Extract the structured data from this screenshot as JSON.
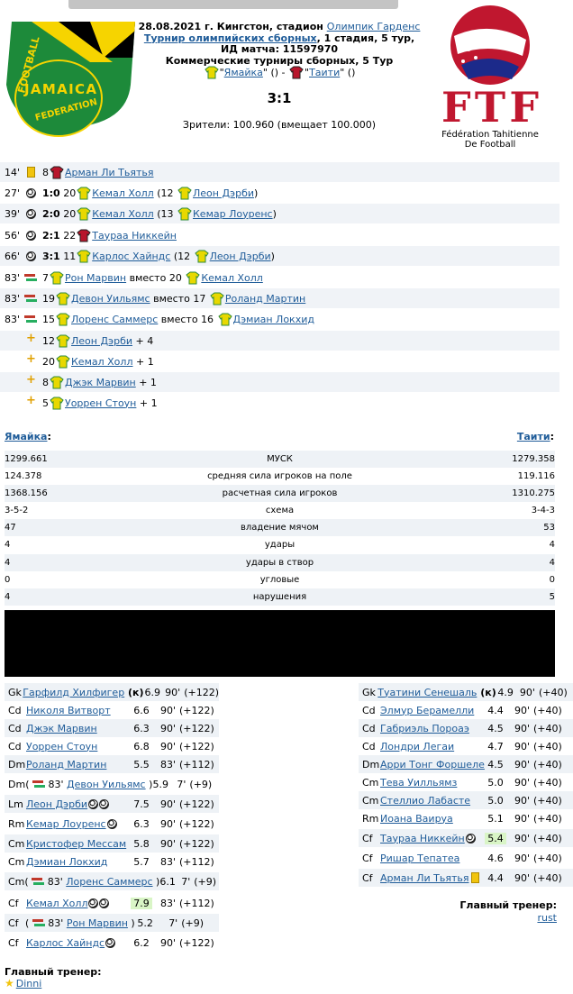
{
  "match": {
    "date_line_prefix": "28.08.2021 г. Кингстон, стадион ",
    "stadium": "Олимпик Гарденс",
    "tournament_link": "Турнир олимпийских сборных",
    "tournament_rest": ", 1 стадия, 5 тур,",
    "match_id": "ИД матча: 11597970",
    "round": "Коммерческие турниры сборных, 5 Тур",
    "home": "Ямайка",
    "away": "Таити",
    "score": "3:1",
    "attendance_label": "Зрители:",
    "attendance_value": "100.960 (вмещает 100.000)",
    "home_logo_text_top": "FOOTBALL",
    "home_logo_text_mid": "JAMAICA",
    "home_logo_text_bot": "FEDERATION",
    "away_logo_letters": "FTF",
    "away_logo_line1": "Fédération Tahitienne",
    "away_logo_line2": "De Football"
  },
  "events": [
    {
      "min": "14'",
      "icon": "yellow-card",
      "text_pre": "8",
      "team": "away",
      "score": "",
      "player": "Арман Ли Тьятья",
      "rest": ""
    },
    {
      "min": "27'",
      "icon": "goal",
      "text_pre": "",
      "score": "1:0",
      "num": "20",
      "team": "home",
      "player": "Кемал Холл",
      "assist_pre": " (12 ",
      "assist": "Леон Дэрби",
      "assist_post": ")"
    },
    {
      "min": "39'",
      "icon": "goal",
      "text_pre": "",
      "score": "2:0",
      "num": "20",
      "team": "home",
      "player": "Кемал Холл",
      "assist_pre": " (13 ",
      "assist": "Кемар Лоуренс",
      "assist_post": ")"
    },
    {
      "min": "56'",
      "icon": "goal",
      "text_pre": "",
      "score": "2:1",
      "num": "22",
      "team": "away",
      "player": "Таураа Никкейн",
      "assist_pre": "",
      "assist": "",
      "assist_post": ""
    },
    {
      "min": "66'",
      "icon": "goal",
      "text_pre": "",
      "score": "3:1",
      "num": "11",
      "team": "home",
      "player": "Карлос Хайндс",
      "assist_pre": " (12 ",
      "assist": "Леон Дэрби",
      "assist_post": ")"
    },
    {
      "min": "83'",
      "icon": "sub",
      "num": "7",
      "team": "home",
      "player": "Рон Марвин",
      "mid": " вместо 20 ",
      "player2": "Кемал Холл"
    },
    {
      "min": "83'",
      "icon": "sub",
      "num": "19",
      "team": "home",
      "player": "Девон Уильямс",
      "mid": " вместо 17 ",
      "player2": "Роланд Мартин"
    },
    {
      "min": "83'",
      "icon": "sub",
      "num": "15",
      "team": "home",
      "player": "Лоренс Саммерс",
      "mid": " вместо 16 ",
      "player2": "Дэмиан Локхид"
    },
    {
      "min": "",
      "icon": "plus",
      "num": "12",
      "team": "home",
      "player": "Леон Дэрби",
      "bonus": " + 4"
    },
    {
      "min": "",
      "icon": "plus",
      "num": "20",
      "team": "home",
      "player": "Кемал Холл",
      "bonus": " + 1"
    },
    {
      "min": "",
      "icon": "plus",
      "num": "8",
      "team": "home",
      "player": "Джэк Марвин",
      "bonus": " + 1"
    },
    {
      "min": "",
      "icon": "plus",
      "num": "5",
      "team": "home",
      "player": "Уоррен Стоун",
      "bonus": " + 1"
    }
  ],
  "stats_header": {
    "home": "Ямайка",
    "away": "Таити",
    "colon": ":"
  },
  "stats": [
    {
      "home": "1299.661",
      "label": "МУСК",
      "away": "1279.358"
    },
    {
      "home": "124.378",
      "label": "средняя сила игроков на поле",
      "away": "119.116"
    },
    {
      "home": "1368.156",
      "label": "расчетная сила игроков",
      "away": "1310.275"
    },
    {
      "home": "3-5-2",
      "label": "схема",
      "away": "3-4-3"
    },
    {
      "home": "47",
      "label": "владение мячом",
      "away": "53"
    },
    {
      "home": "4",
      "label": "удары",
      "away": "4"
    },
    {
      "home": "4",
      "label": "удары в створ",
      "away": "4"
    },
    {
      "home": "0",
      "label": "угловые",
      "away": "0"
    },
    {
      "home": "4",
      "label": "нарушения",
      "away": "5"
    }
  ],
  "home_lineup": [
    {
      "pos": "Gk",
      "name": "Гарфилд Хилфигер",
      "extra": " (к)",
      "rating": "6.9",
      "min": "90'",
      "pts": "(+122)"
    },
    {
      "pos": "Cd",
      "name": "Николя Витворт",
      "extra": "",
      "rating": "6.6",
      "min": "90'",
      "pts": "(+122)"
    },
    {
      "pos": "Cd",
      "name": "Джэк Марвин",
      "extra": "",
      "rating": "6.3",
      "min": "90'",
      "pts": "(+122)"
    },
    {
      "pos": "Cd",
      "name": "Уоррен Стоун",
      "extra": "",
      "rating": "6.8",
      "min": "90'",
      "pts": "(+122)"
    },
    {
      "pos": "Dm",
      "name": "Роланд Мартин",
      "extra": "",
      "rating": "5.5",
      "min": "83'",
      "pts": "(+112)"
    },
    {
      "pos": "Dm",
      "name": "Девон Уильямс",
      "sub": "83'",
      "rating": "5.9",
      "min": "7'",
      "pts": "(+9)"
    },
    {
      "pos": "Lm",
      "name": "Леон Дэрби",
      "extra": "",
      "goals": 2,
      "rating": "7.5",
      "min": "90'",
      "pts": "(+122)"
    },
    {
      "pos": "Rm",
      "name": "Кемар Лоуренс",
      "extra": "",
      "goals": 1,
      "rating": "6.3",
      "min": "90'",
      "pts": "(+122)"
    },
    {
      "pos": "Cm",
      "name": "Кристофер Мессам",
      "extra": "",
      "rating": "5.8",
      "min": "90'",
      "pts": "(+122)"
    },
    {
      "pos": "Cm",
      "name": "Дэмиан Локхид",
      "extra": "",
      "rating": "5.7",
      "min": "83'",
      "pts": "(+112)"
    },
    {
      "pos": "Cm",
      "name": "Лоренс Саммерс",
      "sub": "83'",
      "rating": "6.1",
      "min": "7'",
      "pts": "(+9)"
    },
    {
      "pos": "Cf",
      "name": "Кемал Холл",
      "extra": "",
      "goals": 2,
      "rating": "7.9",
      "best": true,
      "min": "83'",
      "pts": "(+112)"
    },
    {
      "pos": "Cf",
      "name": "Рон Марвин",
      "sub": "83'",
      "rating": "5.2",
      "min": "7'",
      "pts": "(+9)"
    },
    {
      "pos": "Cf",
      "name": "Карлос Хайндс",
      "extra": "",
      "goals": 1,
      "rating": "6.2",
      "min": "90'",
      "pts": "(+122)"
    }
  ],
  "away_lineup": [
    {
      "pos": "Gk",
      "name": "Туатини Сенешаль",
      "extra": " (к)",
      "rating": "4.9",
      "min": "90'",
      "pts": "(+40)"
    },
    {
      "pos": "Cd",
      "name": "Элмур Берамелли",
      "extra": "",
      "rating": "4.4",
      "min": "90'",
      "pts": "(+40)"
    },
    {
      "pos": "Cd",
      "name": "Габриэль Пороаэ",
      "extra": "",
      "rating": "4.5",
      "min": "90'",
      "pts": "(+40)"
    },
    {
      "pos": "Cd",
      "name": "Лондри Легаи",
      "extra": "",
      "rating": "4.7",
      "min": "90'",
      "pts": "(+40)"
    },
    {
      "pos": "Dm",
      "name": "Арри Тонг Форшеле",
      "extra": "",
      "rating": "4.5",
      "min": "90'",
      "pts": "(+40)"
    },
    {
      "pos": "Cm",
      "name": "Тева Уилльямз",
      "extra": "",
      "rating": "5.0",
      "min": "90'",
      "pts": "(+40)"
    },
    {
      "pos": "Cm",
      "name": "Стеллио Лабасте",
      "extra": "",
      "rating": "5.0",
      "min": "90'",
      "pts": "(+40)"
    },
    {
      "pos": "Rm",
      "name": "Иоана Ваируа",
      "extra": "",
      "rating": "5.1",
      "min": "90'",
      "pts": "(+40)"
    },
    {
      "pos": "Cf",
      "name": "Таураа Никкейн",
      "extra": "",
      "goals": 1,
      "rating": "5.4",
      "best": true,
      "min": "90'",
      "pts": "(+40)"
    },
    {
      "pos": "Cf",
      "name": "Ришар Тепатеа",
      "extra": "",
      "rating": "4.6",
      "min": "90'",
      "pts": "(+40)"
    },
    {
      "pos": "Cf",
      "name": "Арман Ли Тьятья",
      "extra": "",
      "card": true,
      "rating": "4.4",
      "min": "90'",
      "pts": "(+40)"
    }
  ],
  "coaches": {
    "label": "Главный тренер:",
    "home": "Dinni",
    "away": "rust"
  },
  "colors": {
    "home_shirt": "#e8d800",
    "home_collar": "#2e8b3a",
    "away_shirt": "#b8152b",
    "link": "#1f5c99",
    "row_alt": "#eef2f6",
    "best_rating": "#d9f5c6"
  }
}
